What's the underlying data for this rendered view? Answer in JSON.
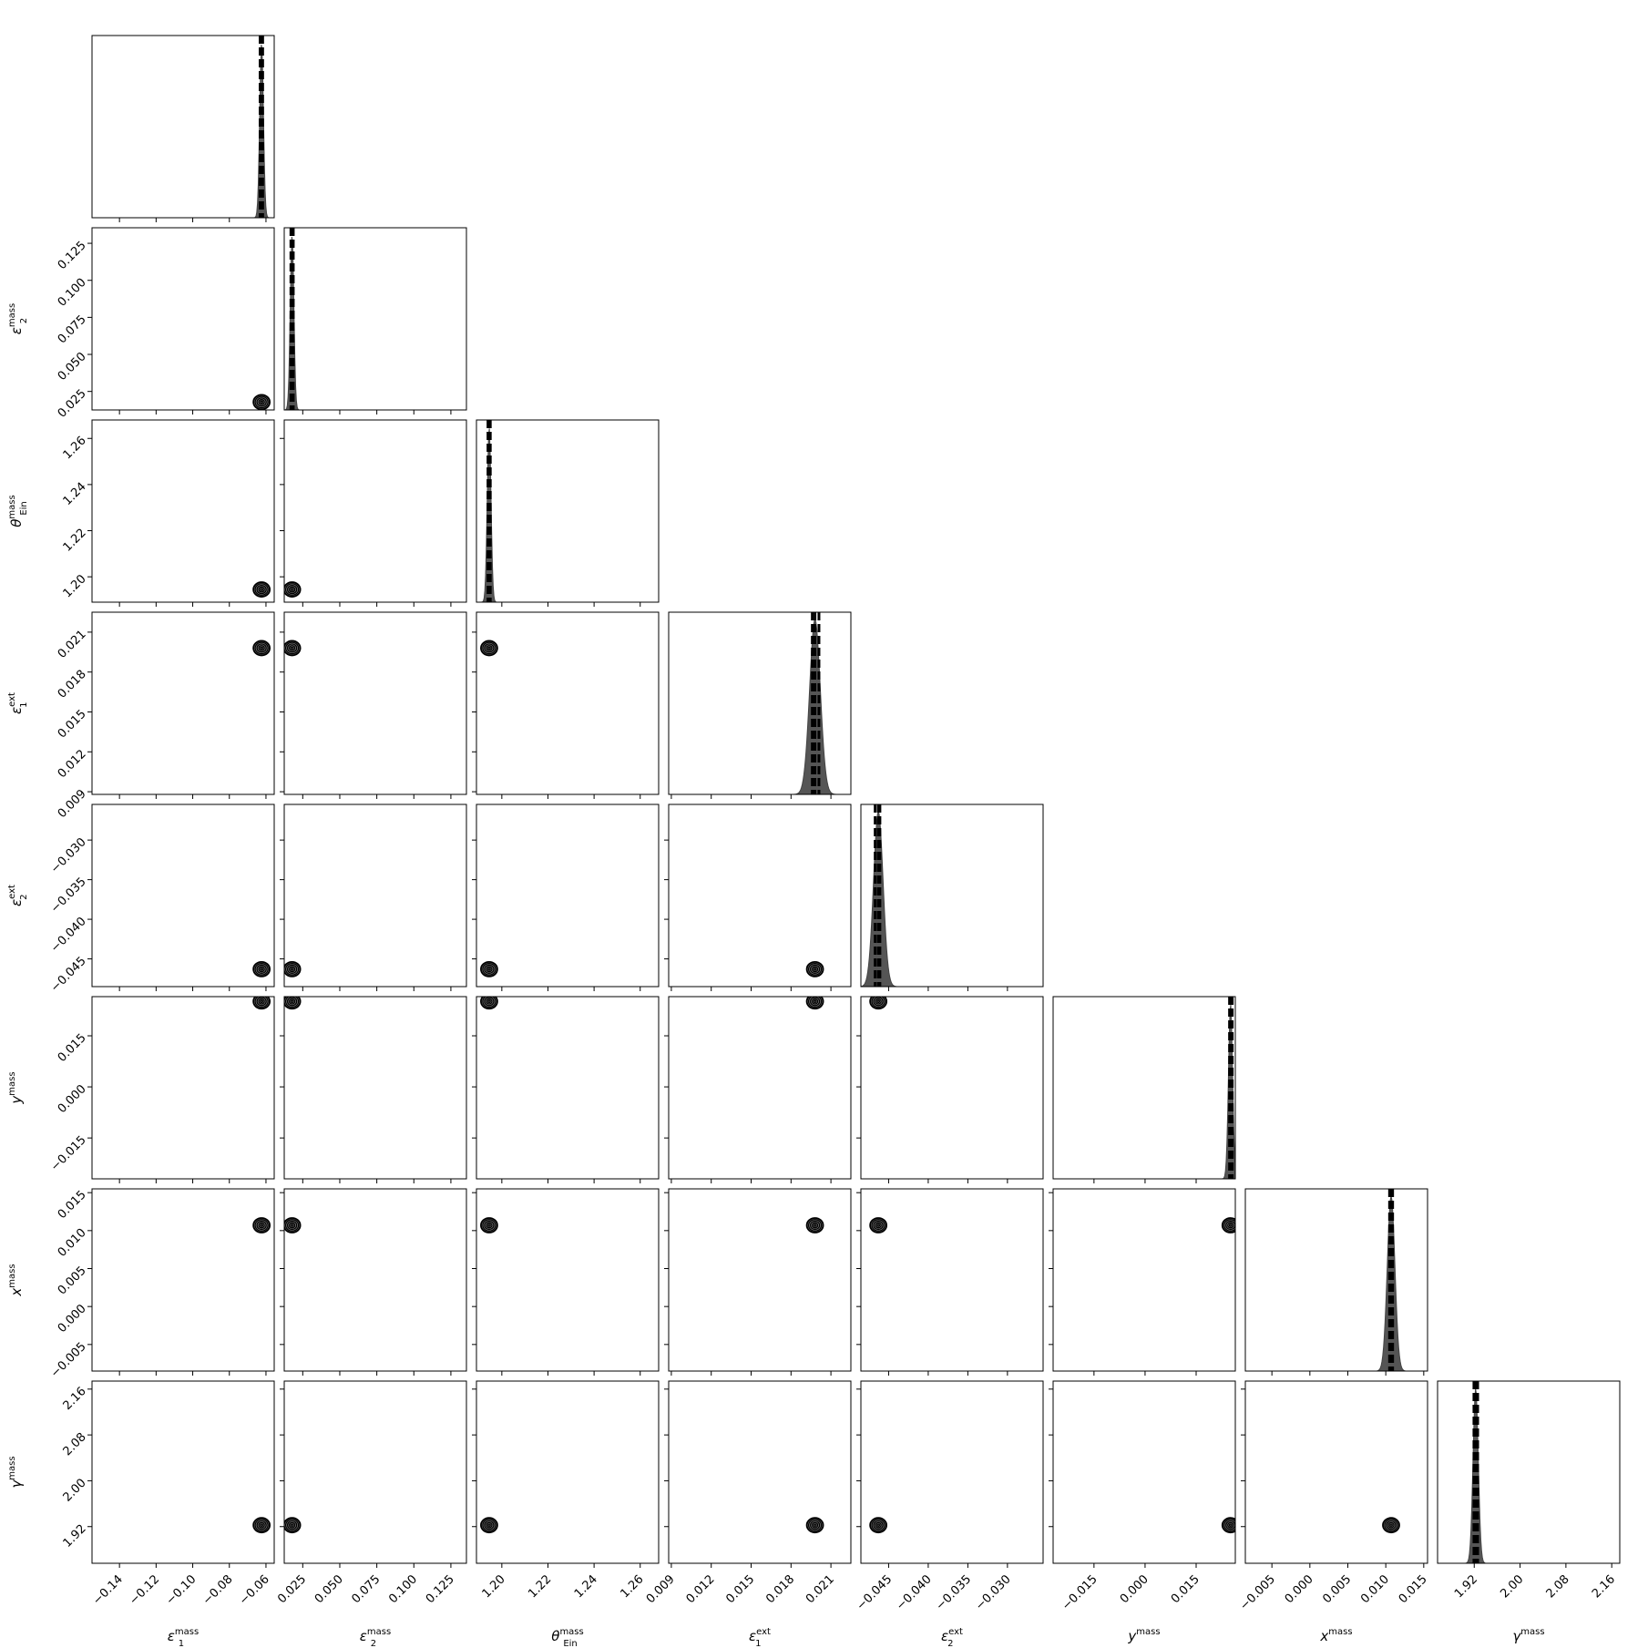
{
  "chart_data": {
    "type": "corner",
    "parameters": [
      {
        "key": "e1_mass",
        "label": "ε1 mass",
        "symbol": "ε",
        "sub": "1",
        "sup": "mass",
        "lim": [
          -0.155,
          -0.0555
        ],
        "ticks": [
          -0.14,
          -0.12,
          -0.1,
          -0.08,
          -0.06
        ],
        "tick_labels": [
          "−0.14",
          "−0.12",
          "−0.10",
          "−0.08",
          "−0.06"
        ],
        "median": -0.0624,
        "quantiles": [
          -0.0632,
          -0.0624,
          -0.0618
        ],
        "sigma": 0.001
      },
      {
        "key": "e2_mass",
        "label": "ε2 mass",
        "symbol": "ε",
        "sub": "2",
        "sup": "mass",
        "lim": [
          0.0125,
          0.1355
        ],
        "ticks": [
          0.025,
          0.05,
          0.075,
          0.1,
          0.125
        ],
        "tick_labels": [
          "0.025",
          "0.050",
          "0.075",
          "0.100",
          "0.125"
        ],
        "median": 0.0178,
        "quantiles": [
          0.017,
          0.0178,
          0.0186
        ],
        "sigma": 0.0012
      },
      {
        "key": "theta_E",
        "label": "θ Ein mass",
        "symbol": "θ",
        "sub": "Ein",
        "sup": "mass",
        "lim": [
          1.189,
          1.268
        ],
        "ticks": [
          1.2,
          1.22,
          1.24,
          1.26
        ],
        "tick_labels": [
          "1.20",
          "1.22",
          "1.24",
          "1.26"
        ],
        "median": 1.1945,
        "quantiles": [
          1.194,
          1.1945,
          1.195
        ],
        "sigma": 0.0008
      },
      {
        "key": "e1_ext",
        "label": "ε1 ext",
        "symbol": "ε",
        "sub": "1",
        "sup": "ext",
        "lim": [
          0.0088,
          0.0225
        ],
        "ticks": [
          0.009,
          0.012,
          0.015,
          0.018,
          0.021
        ],
        "tick_labels": [
          "0.009",
          "0.012",
          "0.015",
          "0.018",
          "0.021"
        ],
        "median": 0.0198,
        "quantiles": [
          0.0196,
          0.0198,
          0.0201
        ],
        "sigma": 0.0004
      },
      {
        "key": "e2_ext",
        "label": "ε2 ext",
        "symbol": "ε",
        "sub": "2",
        "sup": "ext",
        "lim": [
          -0.0485,
          -0.0255
        ],
        "ticks": [
          -0.045,
          -0.04,
          -0.035,
          -0.03
        ],
        "tick_labels": [
          "−0.045",
          "−0.040",
          "−0.035",
          "−0.030"
        ],
        "median": -0.0463,
        "quantiles": [
          -0.0467,
          -0.0463,
          -0.0461
        ],
        "sigma": 0.0006
      },
      {
        "key": "y_mass",
        "label": "y mass",
        "symbol": "y",
        "sub": "",
        "sup": "mass",
        "lim": [
          -0.027,
          0.0265
        ],
        "ticks": [
          -0.015,
          0.0,
          0.015
        ],
        "tick_labels": [
          "−0.015",
          "0.000",
          "0.015"
        ],
        "median": 0.0251,
        "quantiles": [
          0.0248,
          0.0251,
          0.0256
        ],
        "sigma": 0.0006
      },
      {
        "key": "x_mass",
        "label": "x mass",
        "symbol": "x",
        "sub": "",
        "sup": "mass",
        "lim": [
          -0.0085,
          0.0155
        ],
        "ticks": [
          -0.005,
          0.0,
          0.005,
          0.01,
          0.015
        ],
        "tick_labels": [
          "−0.005",
          "0.000",
          "0.005",
          "0.010",
          "0.015"
        ],
        "median": 0.0107,
        "quantiles": [
          0.0105,
          0.0107,
          0.0109
        ],
        "sigma": 0.0005
      },
      {
        "key": "gamma",
        "label": "γ mass",
        "symbol": "γ",
        "sub": "",
        "sup": "mass",
        "lim": [
          1.856,
          2.174
        ],
        "ticks": [
          1.92,
          2.0,
          2.08,
          2.16
        ],
        "tick_labels": [
          "1.92",
          "2.00",
          "2.08",
          "2.16"
        ],
        "median": 1.9225,
        "quantiles": [
          1.9195,
          1.9225,
          1.926
        ],
        "sigma": 0.0045
      }
    ],
    "colors": {
      "histogram": "#555555",
      "lines": "#000000",
      "frame": "#000000"
    }
  }
}
